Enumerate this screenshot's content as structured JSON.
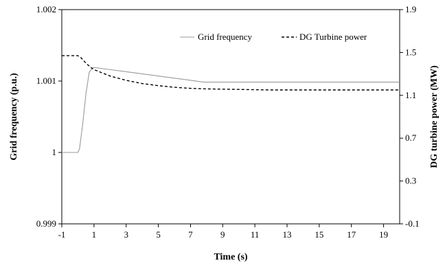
{
  "chart_data": {
    "type": "line",
    "title": "",
    "xlabel": "Time (s)",
    "ylabel_left": "Grid frequency (p.u.)",
    "ylabel_right": "DG turbine power (MW)",
    "xlim": [
      -1,
      20
    ],
    "ylim_left": [
      0.999,
      1.002
    ],
    "ylim_right": [
      -0.1,
      1.9
    ],
    "x_ticks": [
      "-1",
      "1",
      "3",
      "5",
      "7",
      "9",
      "11",
      "13",
      "15",
      "17",
      "19"
    ],
    "y_left_ticks": [
      "0.999",
      "1",
      "1.001",
      "1.002"
    ],
    "y_right_ticks": [
      "-0.1",
      "0.3",
      "0.7",
      "1.1",
      "1.5",
      "1.9"
    ],
    "grid": false,
    "legend_position": "top-right",
    "series": [
      {
        "name": "Grid frequency",
        "axis": "left",
        "style": "solid",
        "color": "#999999",
        "x": [
          -1,
          0,
          0.1,
          0.3,
          0.5,
          0.7,
          0.9,
          1.0,
          2,
          3,
          4,
          5,
          6,
          7,
          7.8,
          8,
          10,
          12,
          14,
          16,
          18,
          20
        ],
        "y": [
          1.0,
          1.0,
          1.00005,
          1.0004,
          1.00082,
          1.00112,
          1.00118,
          1.00119,
          1.00116,
          1.00113,
          1.0011,
          1.00107,
          1.00104,
          1.00101,
          1.000985,
          1.000985,
          1.000985,
          1.000985,
          1.000985,
          1.000985,
          1.000985,
          1.000985
        ]
      },
      {
        "name": "DG Turbine power",
        "axis": "right",
        "style": "dashed",
        "color": "#000000",
        "x": [
          -1,
          0,
          0.2,
          0.5,
          0.8,
          1.0,
          1.5,
          2,
          3,
          4,
          5,
          6,
          7,
          8,
          10,
          12,
          14,
          16,
          18,
          20
        ],
        "y": [
          1.47,
          1.47,
          1.45,
          1.4,
          1.36,
          1.34,
          1.31,
          1.28,
          1.24,
          1.21,
          1.19,
          1.175,
          1.165,
          1.16,
          1.155,
          1.15,
          1.15,
          1.15,
          1.15,
          1.15
        ]
      }
    ]
  }
}
